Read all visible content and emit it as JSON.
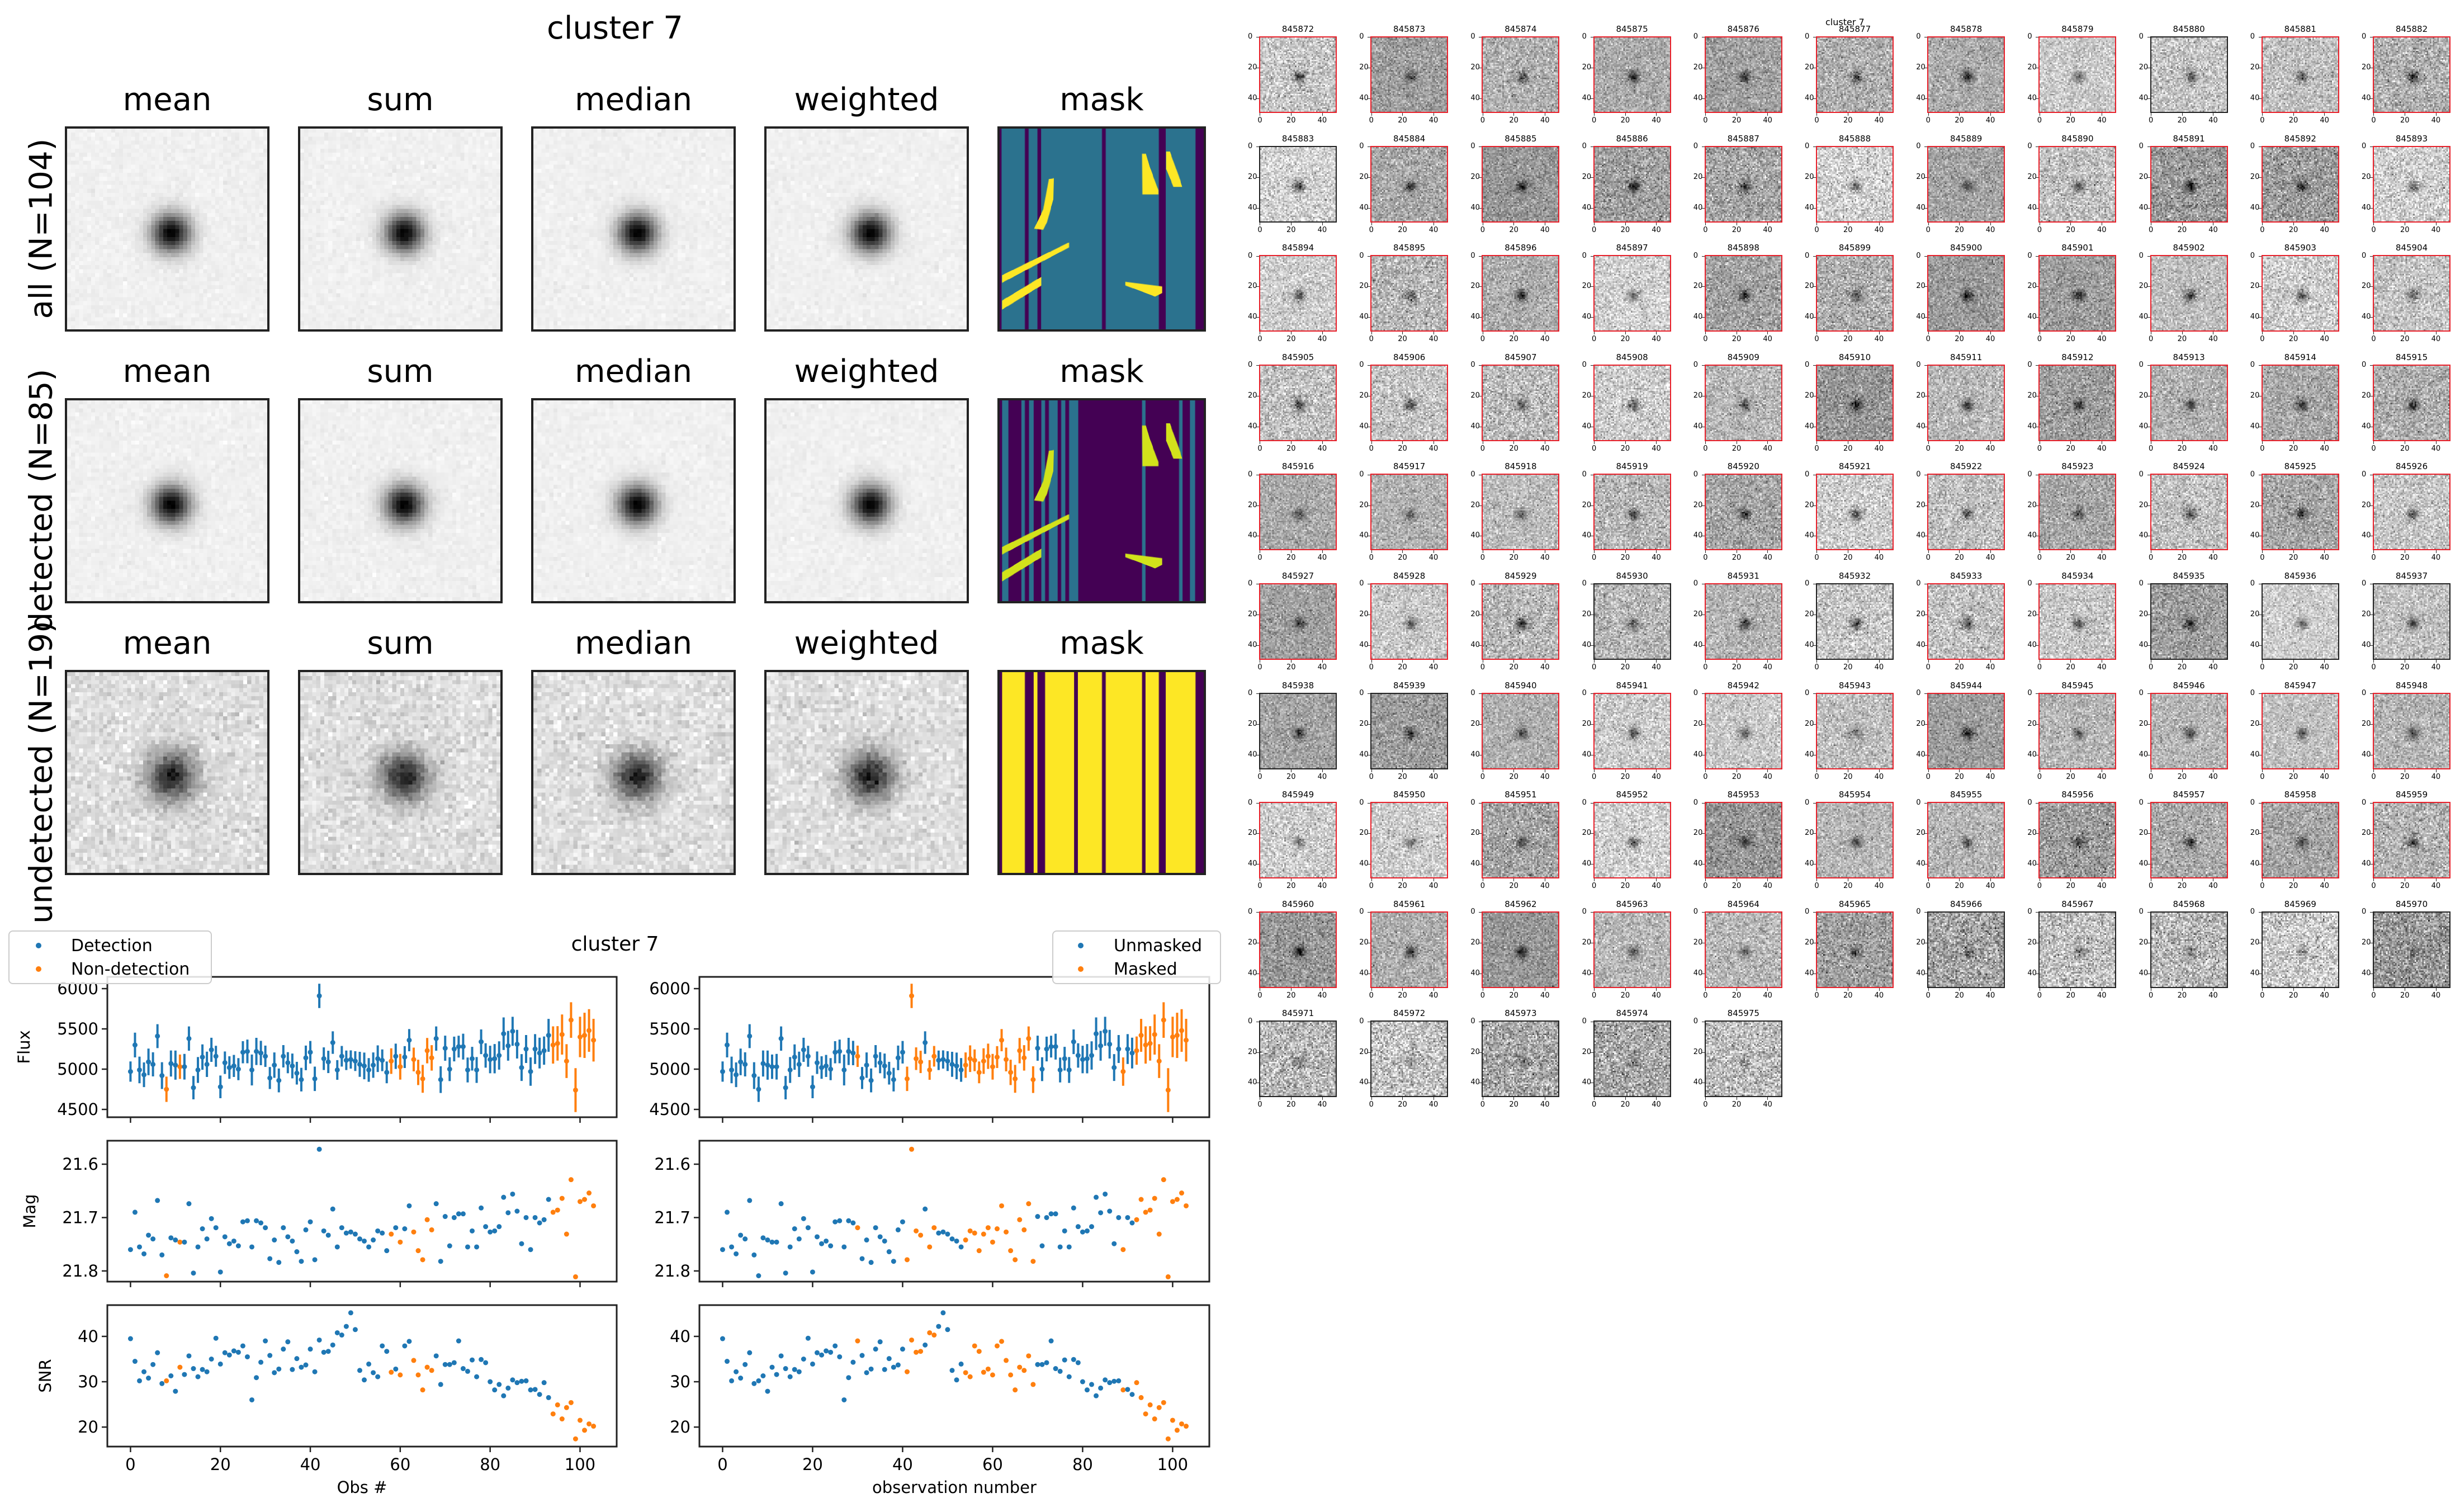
{
  "figure_title": "cluster 7",
  "stamps": {
    "columns": [
      "mean",
      "sum",
      "median",
      "weighted",
      "mask"
    ],
    "rows": [
      {
        "label": "all (N=104)"
      },
      {
        "label": "detected (N=85)"
      },
      {
        "label": "undetected (N=19)"
      }
    ]
  },
  "thumbnails": {
    "title": "cluster 7",
    "tick_labels": [
      "0",
      "20",
      "40"
    ],
    "ids": [
      "845872",
      "845873",
      "845874",
      "845875",
      "845876",
      "845877",
      "845878",
      "845879",
      "845880",
      "845881",
      "845882",
      "845883",
      "845884",
      "845885",
      "845886",
      "845887",
      "845888",
      "845889",
      "845890",
      "845891",
      "845892",
      "845893",
      "845894",
      "845895",
      "845896",
      "845897",
      "845898",
      "845899",
      "845900",
      "845901",
      "845902",
      "845903",
      "845904",
      "845905",
      "845906",
      "845907",
      "845908",
      "845909",
      "845910",
      "845911",
      "845912",
      "845913",
      "845914",
      "845915",
      "845916",
      "845917",
      "845918",
      "845919",
      "845920",
      "845921",
      "845922",
      "845923",
      "845924",
      "845925",
      "845926",
      "845927",
      "845928",
      "845929",
      "845930",
      "845931",
      "845932",
      "845933",
      "845934",
      "845935",
      "845936",
      "845937",
      "845938",
      "845939",
      "845940",
      "845941",
      "845942",
      "845943",
      "845944",
      "845945",
      "845946",
      "845947",
      "845948",
      "845949",
      "845950",
      "845951",
      "845952",
      "845953",
      "845954",
      "845955",
      "845956",
      "845957",
      "845958",
      "845959",
      "845960",
      "845961",
      "845962",
      "845963",
      "845964",
      "845965",
      "845966",
      "845967",
      "845968",
      "845969",
      "845970",
      "845971",
      "845972",
      "845973",
      "845974",
      "845975"
    ]
  },
  "colors": {
    "blue": "#1f77b4",
    "orange": "#ff7f0e",
    "viridis_dark": "#440154",
    "viridis_teal": "#2b728e",
    "viridis_yellow": "#fde725"
  },
  "chart_data": {
    "type": "scatter",
    "title": "cluster 7",
    "xlim": [
      -5.15,
      108.15
    ],
    "xticks": [
      0,
      20,
      40,
      60,
      80,
      100
    ],
    "rows": [
      {
        "key": "flux",
        "ylabel": "Flux",
        "ylim": [
          4403,
          6146
        ],
        "yticks": [
          4500,
          5000,
          5500,
          6000
        ],
        "ytick_labels": [
          "4500",
          "5000",
          "5500",
          "6000"
        ],
        "errorbars": true
      },
      {
        "key": "mag",
        "ylabel": "Mag",
        "ylim": [
          21.82,
          21.556
        ],
        "yticks": [
          21.6,
          21.7,
          21.8
        ],
        "ytick_labels": [
          "21.6",
          "21.7",
          "21.8"
        ],
        "inverted": true
      },
      {
        "key": "snr",
        "ylabel": "SNR",
        "ylim": [
          15.7,
          46.9
        ],
        "yticks": [
          20,
          30,
          40
        ],
        "ytick_labels": [
          "20",
          "30",
          "40"
        ]
      }
    ],
    "panels": [
      {
        "color_by": "non_detection_idx",
        "legend": [
          "Detection",
          "Non-detection"
        ],
        "legend_loc": "upper-left",
        "xlabel": "Obs #",
        "show_ylabels": true
      },
      {
        "color_by": "masked_idx",
        "legend": [
          "Unmasked",
          "Masked"
        ],
        "legend_loc": "upper-right",
        "xlabel": "observation number",
        "show_ylabels": false
      }
    ],
    "x": [
      0,
      1,
      2,
      3,
      4,
      5,
      6,
      7,
      8,
      9,
      10,
      11,
      12,
      13,
      14,
      15,
      16,
      17,
      18,
      19,
      20,
      21,
      22,
      23,
      24,
      25,
      26,
      27,
      28,
      29,
      30,
      31,
      32,
      33,
      34,
      35,
      36,
      37,
      38,
      39,
      40,
      41,
      42,
      43,
      44,
      45,
      46,
      47,
      48,
      49,
      50,
      51,
      52,
      53,
      54,
      55,
      56,
      57,
      58,
      59,
      60,
      61,
      62,
      63,
      64,
      65,
      66,
      67,
      68,
      69,
      70,
      71,
      72,
      73,
      74,
      75,
      76,
      77,
      78,
      79,
      80,
      81,
      82,
      83,
      84,
      85,
      86,
      87,
      88,
      89,
      90,
      91,
      92,
      93,
      94,
      95,
      96,
      97,
      98,
      99,
      100,
      101,
      102,
      103
    ],
    "flux": [
      4970,
      5300,
      4990,
      4930,
      5090,
      5060,
      5410,
      4920,
      4750,
      5070,
      5050,
      5030,
      5030,
      5380,
      4770,
      4990,
      5150,
      5060,
      5240,
      5160,
      4780,
      5080,
      5020,
      5040,
      5000,
      5210,
      5220,
      4990,
      5220,
      5200,
      5160,
      4890,
      5050,
      4860,
      5160,
      5080,
      5040,
      4950,
      4870,
      5140,
      5210,
      4880,
      5910,
      5130,
      5090,
      5330,
      4990,
      5160,
      5110,
      5120,
      5100,
      5060,
      5040,
      4990,
      5050,
      5130,
      5110,
      4960,
      5100,
      5160,
      5030,
      5150,
      5360,
      5120,
      4960,
      4880,
      5230,
      5140,
      5380,
      4870,
      5260,
      5000,
      5250,
      5280,
      5280,
      4990,
      5130,
      4990,
      5340,
      5170,
      5120,
      5130,
      5170,
      5440,
      5290,
      5470,
      5310,
      5020,
      5250,
      4970,
      5250,
      5200,
      5230,
      5420,
      5300,
      5320,
      5430,
      5100,
      5610,
      4740,
      5400,
      5420,
      5480,
      5360
    ],
    "mag": [
      21.76,
      21.69,
      21.755,
      21.768,
      21.733,
      21.74,
      21.668,
      21.77,
      21.809,
      21.738,
      21.742,
      21.746,
      21.746,
      21.674,
      21.804,
      21.755,
      21.721,
      21.74,
      21.702,
      21.719,
      21.802,
      21.736,
      21.749,
      21.744,
      21.753,
      21.708,
      21.706,
      21.755,
      21.706,
      21.71,
      21.719,
      21.777,
      21.742,
      21.784,
      21.719,
      21.736,
      21.744,
      21.764,
      21.782,
      21.723,
      21.708,
      21.779,
      21.572,
      21.725,
      21.733,
      21.684,
      21.755,
      21.719,
      21.729,
      21.727,
      21.731,
      21.74,
      21.744,
      21.755,
      21.742,
      21.725,
      21.729,
      21.762,
      21.731,
      21.719,
      21.746,
      21.721,
      21.678,
      21.727,
      21.762,
      21.779,
      21.704,
      21.723,
      21.674,
      21.782,
      21.698,
      21.753,
      21.7,
      21.693,
      21.693,
      21.755,
      21.725,
      21.755,
      21.682,
      21.717,
      21.727,
      21.725,
      21.717,
      21.662,
      21.691,
      21.656,
      21.688,
      21.749,
      21.7,
      21.76,
      21.7,
      21.71,
      21.704,
      21.666,
      21.69,
      21.686,
      21.664,
      21.731,
      21.629,
      21.811,
      21.67,
      21.666,
      21.654,
      21.678
    ],
    "snr": [
      39.5,
      34.5,
      30.2,
      32.2,
      30.8,
      33.8,
      36.4,
      29.6,
      30.2,
      31.3,
      27.9,
      33.2,
      31.6,
      35.7,
      32.9,
      31.1,
      32.7,
      32.2,
      35.0,
      39.6,
      33.9,
      36.4,
      35.9,
      36.8,
      36.5,
      37.9,
      35.5,
      26.0,
      30.9,
      34.3,
      39.0,
      35.8,
      32.0,
      32.8,
      37.2,
      38.8,
      32.7,
      35.1,
      33.2,
      33.7,
      37.2,
      32.2,
      39.2,
      36.5,
      36.7,
      38.1,
      40.8,
      40.3,
      42.2,
      45.2,
      41.5,
      32.5,
      30.4,
      33.9,
      32.0,
      31.1,
      37.9,
      36.7,
      32.1,
      32.8,
      31.5,
      37.9,
      38.9,
      34.7,
      31.5,
      28.2,
      33.2,
      32.5,
      35.7,
      29.4,
      33.8,
      33.8,
      34.2,
      39.0,
      32.9,
      32.3,
      34.8,
      31.1,
      34.9,
      34.2,
      30.0,
      28.2,
      29.4,
      26.9,
      28.6,
      30.4,
      29.8,
      30.1,
      30.2,
      28.2,
      28.3,
      27.2,
      29.8,
      26.5,
      22.9,
      24.9,
      21.8,
      24.3,
      25.4,
      17.4,
      21.5,
      19.3,
      20.7,
      20.2
    ],
    "non_detection_idx": [
      8,
      11,
      58,
      60,
      63,
      64,
      65,
      66,
      67,
      94,
      95,
      96,
      97,
      98,
      99,
      100,
      101,
      102,
      103
    ],
    "masked_idx": [
      30,
      41,
      42,
      43,
      44,
      46,
      47,
      54,
      55,
      56,
      57,
      58,
      59,
      60,
      61,
      62,
      63,
      64,
      65,
      66,
      67,
      68,
      69,
      89,
      92,
      93,
      94,
      95,
      96,
      97,
      98,
      99,
      100,
      101,
      102,
      103
    ]
  }
}
